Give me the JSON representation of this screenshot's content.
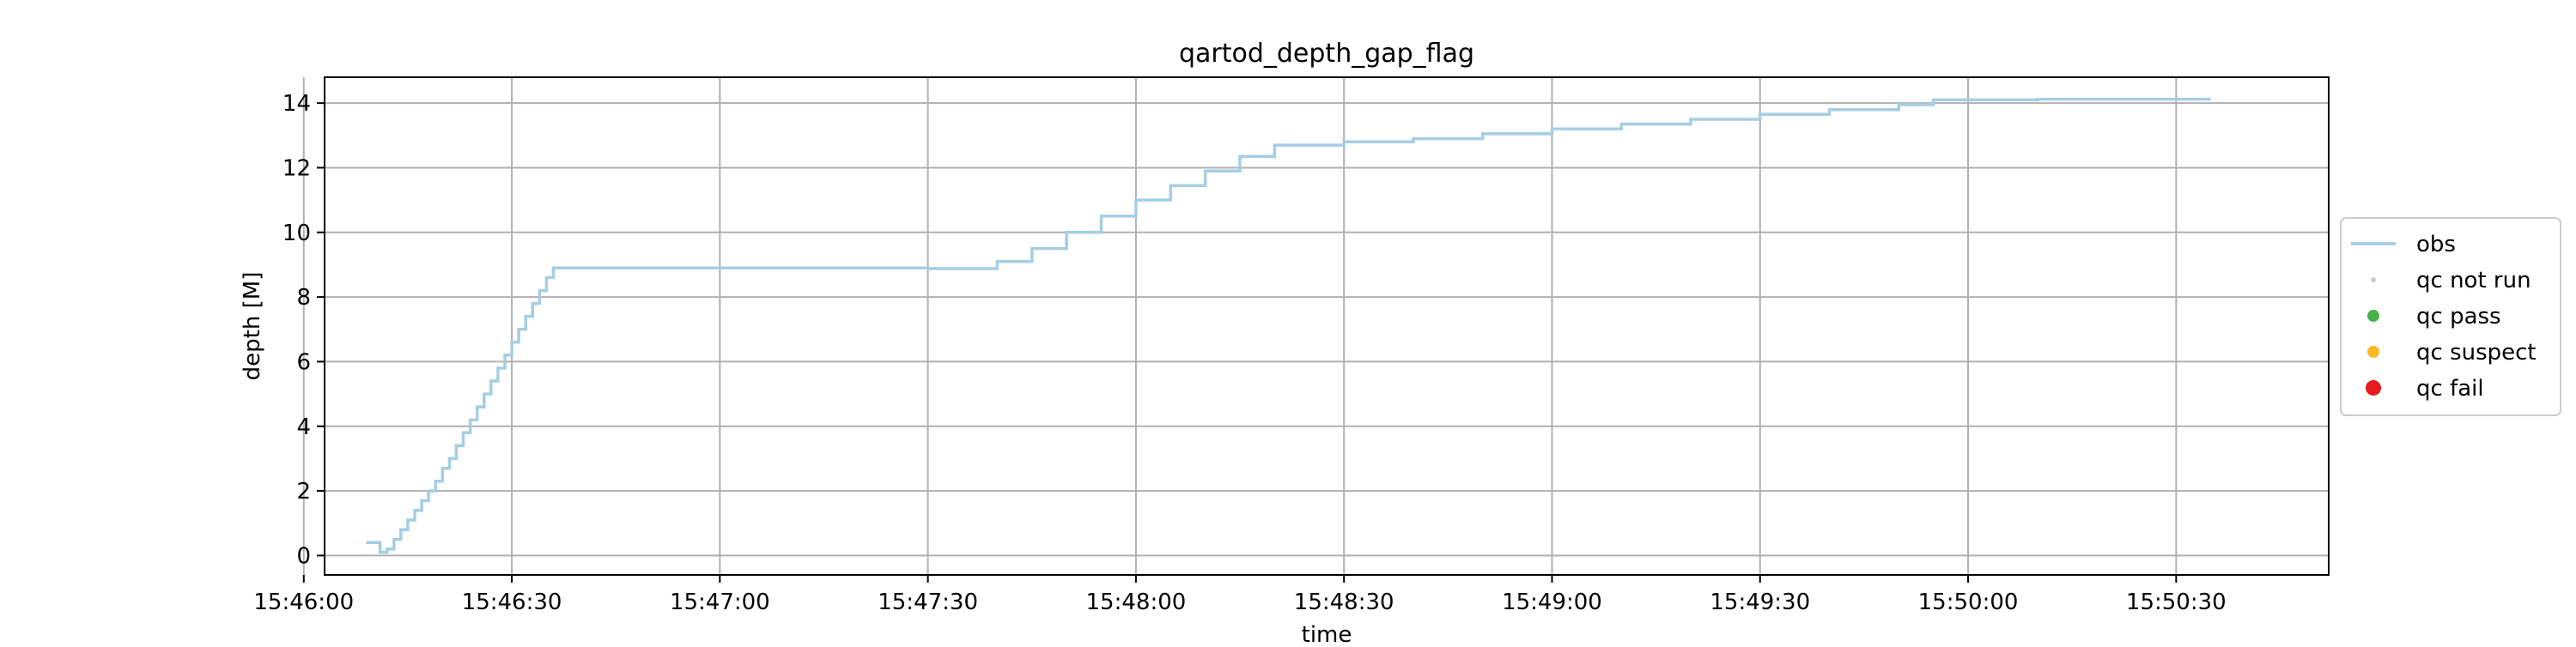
{
  "chart_data": {
    "type": "line",
    "title": "qartod_depth_gap_flag",
    "xlabel": "time",
    "ylabel": "depth [M]",
    "x_axis_kind": "time",
    "xlim": [
      "15:46:03",
      "15:50:52"
    ],
    "ylim": [
      -0.6,
      14.8
    ],
    "grid": true,
    "x_ticks": [
      "15:46:00",
      "15:46:30",
      "15:47:00",
      "15:47:30",
      "15:48:00",
      "15:48:30",
      "15:49:00",
      "15:49:30",
      "15:50:00",
      "15:50:30"
    ],
    "y_ticks": [
      0,
      2,
      4,
      6,
      8,
      10,
      12,
      14
    ],
    "legend": {
      "position": "right",
      "entries": [
        {
          "label": "obs",
          "marker": "line",
          "color": "#a6cee3"
        },
        {
          "label": "qc not run",
          "marker": "dot",
          "color": "#cccccc"
        },
        {
          "label": "qc pass",
          "marker": "dot",
          "color": "#4daf4a"
        },
        {
          "label": "qc suspect",
          "marker": "dot",
          "color": "#fdb827"
        },
        {
          "label": "qc fail",
          "marker": "dot",
          "color": "#e41a1c"
        }
      ]
    },
    "series": [
      {
        "name": "obs",
        "color": "#a6cee3",
        "style": "steps",
        "points": [
          [
            "15:46:09",
            0.4
          ],
          [
            "15:46:10",
            0.4
          ],
          [
            "15:46:11",
            0.1
          ],
          [
            "15:46:12",
            0.2
          ],
          [
            "15:46:13",
            0.5
          ],
          [
            "15:46:14",
            0.8
          ],
          [
            "15:46:15",
            1.1
          ],
          [
            "15:46:16",
            1.4
          ],
          [
            "15:46:17",
            1.7
          ],
          [
            "15:46:18",
            2.0
          ],
          [
            "15:46:19",
            2.3
          ],
          [
            "15:46:20",
            2.7
          ],
          [
            "15:46:21",
            3.0
          ],
          [
            "15:46:22",
            3.4
          ],
          [
            "15:46:23",
            3.8
          ],
          [
            "15:46:24",
            4.2
          ],
          [
            "15:46:25",
            4.6
          ],
          [
            "15:46:26",
            5.0
          ],
          [
            "15:46:27",
            5.4
          ],
          [
            "15:46:28",
            5.8
          ],
          [
            "15:46:29",
            6.2
          ],
          [
            "15:46:30",
            6.6
          ],
          [
            "15:46:31",
            7.0
          ],
          [
            "15:46:32",
            7.4
          ],
          [
            "15:46:33",
            7.8
          ],
          [
            "15:46:34",
            8.2
          ],
          [
            "15:46:35",
            8.6
          ],
          [
            "15:46:36",
            8.9
          ],
          [
            "15:47:00",
            8.9
          ],
          [
            "15:47:30",
            8.88
          ],
          [
            "15:47:37",
            8.88
          ],
          [
            "15:47:40",
            9.1
          ],
          [
            "15:47:45",
            9.5
          ],
          [
            "15:47:50",
            10.0
          ],
          [
            "15:47:55",
            10.5
          ],
          [
            "15:48:00",
            11.0
          ],
          [
            "15:48:05",
            11.45
          ],
          [
            "15:48:10",
            11.9
          ],
          [
            "15:48:15",
            12.35
          ],
          [
            "15:48:20",
            12.7
          ],
          [
            "15:48:30",
            12.8
          ],
          [
            "15:48:40",
            12.9
          ],
          [
            "15:48:50",
            13.05
          ],
          [
            "15:49:00",
            13.2
          ],
          [
            "15:49:10",
            13.35
          ],
          [
            "15:49:20",
            13.5
          ],
          [
            "15:49:30",
            13.65
          ],
          [
            "15:49:40",
            13.8
          ],
          [
            "15:49:50",
            13.95
          ],
          [
            "15:49:55",
            14.1
          ],
          [
            "15:50:10",
            14.12
          ],
          [
            "15:50:35",
            14.12
          ]
        ]
      }
    ]
  }
}
